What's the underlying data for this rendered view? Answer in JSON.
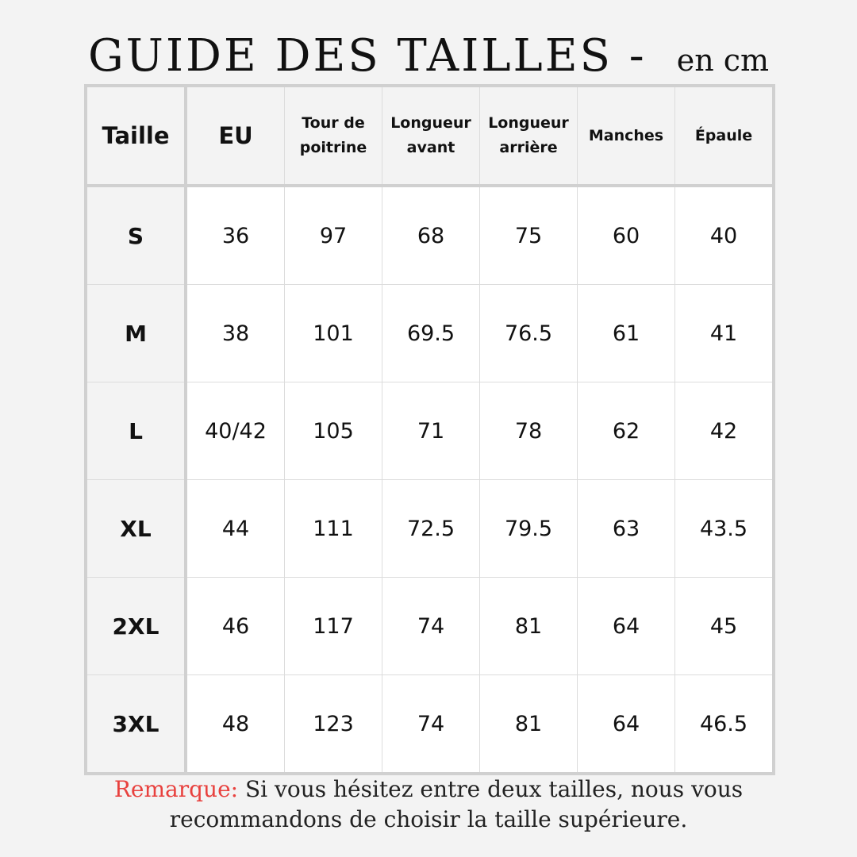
{
  "title": {
    "main": "GUIDE DES TAILLES -",
    "unit": "en cm"
  },
  "table": {
    "headers": [
      "Taille",
      "EU",
      "Tour de poitrine",
      "Longueur avant",
      "Longueur arrière",
      "Manches",
      "Épaule"
    ],
    "rows": [
      [
        "S",
        "36",
        "97",
        "68",
        "75",
        "60",
        "40"
      ],
      [
        "M",
        "38",
        "101",
        "69.5",
        "76.5",
        "61",
        "41"
      ],
      [
        "L",
        "40/42",
        "105",
        "71",
        "78",
        "62",
        "42"
      ],
      [
        "XL",
        "44",
        "111",
        "72.5",
        "79.5",
        "63",
        "43.5"
      ],
      [
        "2XL",
        "46",
        "117",
        "74",
        "81",
        "64",
        "45"
      ],
      [
        "3XL",
        "48",
        "123",
        "74",
        "81",
        "64",
        "46.5"
      ]
    ]
  },
  "note": {
    "label": "Remarque:",
    "text": " Si vous hésitez entre deux tailles, nous vous recommandons de choisir la taille supérieure."
  },
  "colors": {
    "accent": "#e8413e",
    "background": "#f3f3f3",
    "border": "#d0d0d0"
  }
}
